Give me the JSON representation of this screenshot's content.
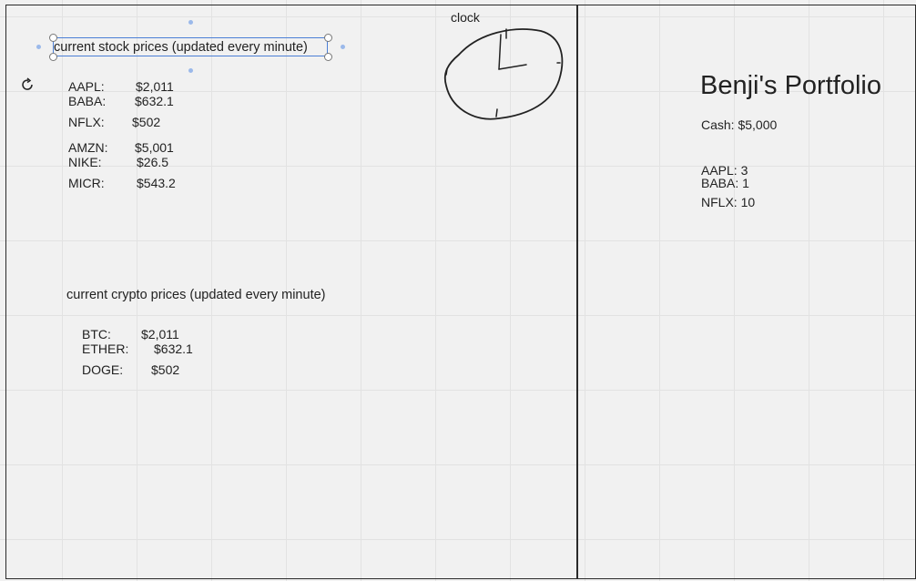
{
  "stocks": {
    "heading": "current stock prices (updated every minute)",
    "items": [
      {
        "ticker": "AAPL:",
        "price": "$2,011"
      },
      {
        "ticker": "BABA:",
        "price": "$632.1"
      },
      {
        "ticker": "NFLX:",
        "price": "$502"
      },
      {
        "ticker": "AMZN:",
        "price": "$5,001"
      },
      {
        "ticker": "NIKE:",
        "price": "$26.5"
      },
      {
        "ticker": "MICR:",
        "price": "$543.2"
      }
    ]
  },
  "crypto": {
    "heading": "current crypto prices (updated every minute)",
    "items": [
      {
        "ticker": "BTC:",
        "price": "$2,011"
      },
      {
        "ticker": "ETHER:",
        "price": "$632.1"
      },
      {
        "ticker": "DOGE:",
        "price": "$502"
      }
    ]
  },
  "clock": {
    "label": "clock"
  },
  "portfolio": {
    "title": "Benji's Portfolio",
    "cash": "Cash: $5,000",
    "holdings": [
      "AAPL: 3",
      "BABA: 1",
      "NFLX: 10"
    ]
  },
  "icons": {
    "rotate": "rotate-icon",
    "clock": "clock-sketch"
  }
}
